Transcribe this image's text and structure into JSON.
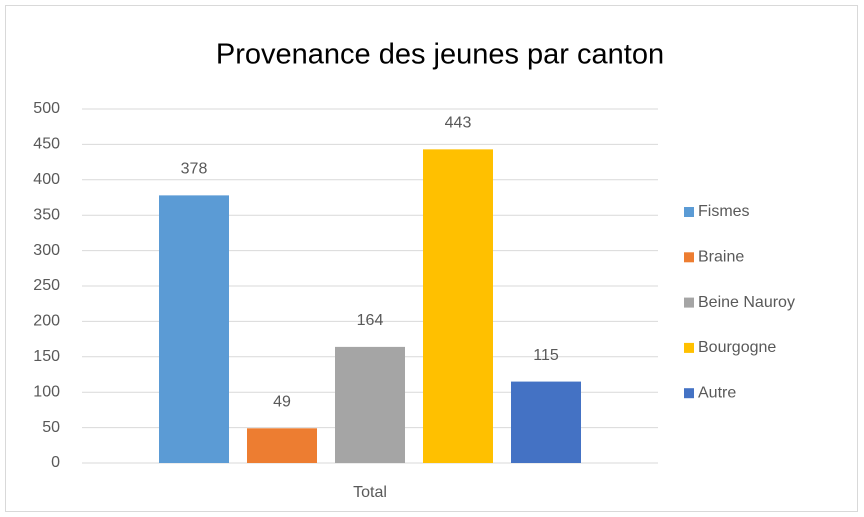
{
  "chart_data": {
    "type": "bar",
    "title": "Provenance des jeunes par canton",
    "categories": [
      "Total"
    ],
    "series": [
      {
        "name": "Fismes",
        "color": "#5b9bd5",
        "values": [
          378
        ]
      },
      {
        "name": "Braine",
        "color": "#ed7d31",
        "values": [
          49
        ]
      },
      {
        "name": "Beine Nauroy",
        "color": "#a5a5a5",
        "values": [
          164
        ]
      },
      {
        "name": "Bourgogne",
        "color": "#ffc000",
        "values": [
          443
        ]
      },
      {
        "name": "Autre",
        "color": "#4472c4",
        "values": [
          115
        ]
      }
    ],
    "ylim": [
      0,
      500
    ],
    "yticks": [
      0,
      50,
      100,
      150,
      200,
      250,
      300,
      350,
      400,
      450,
      500
    ],
    "grid": true,
    "legend": "right"
  }
}
